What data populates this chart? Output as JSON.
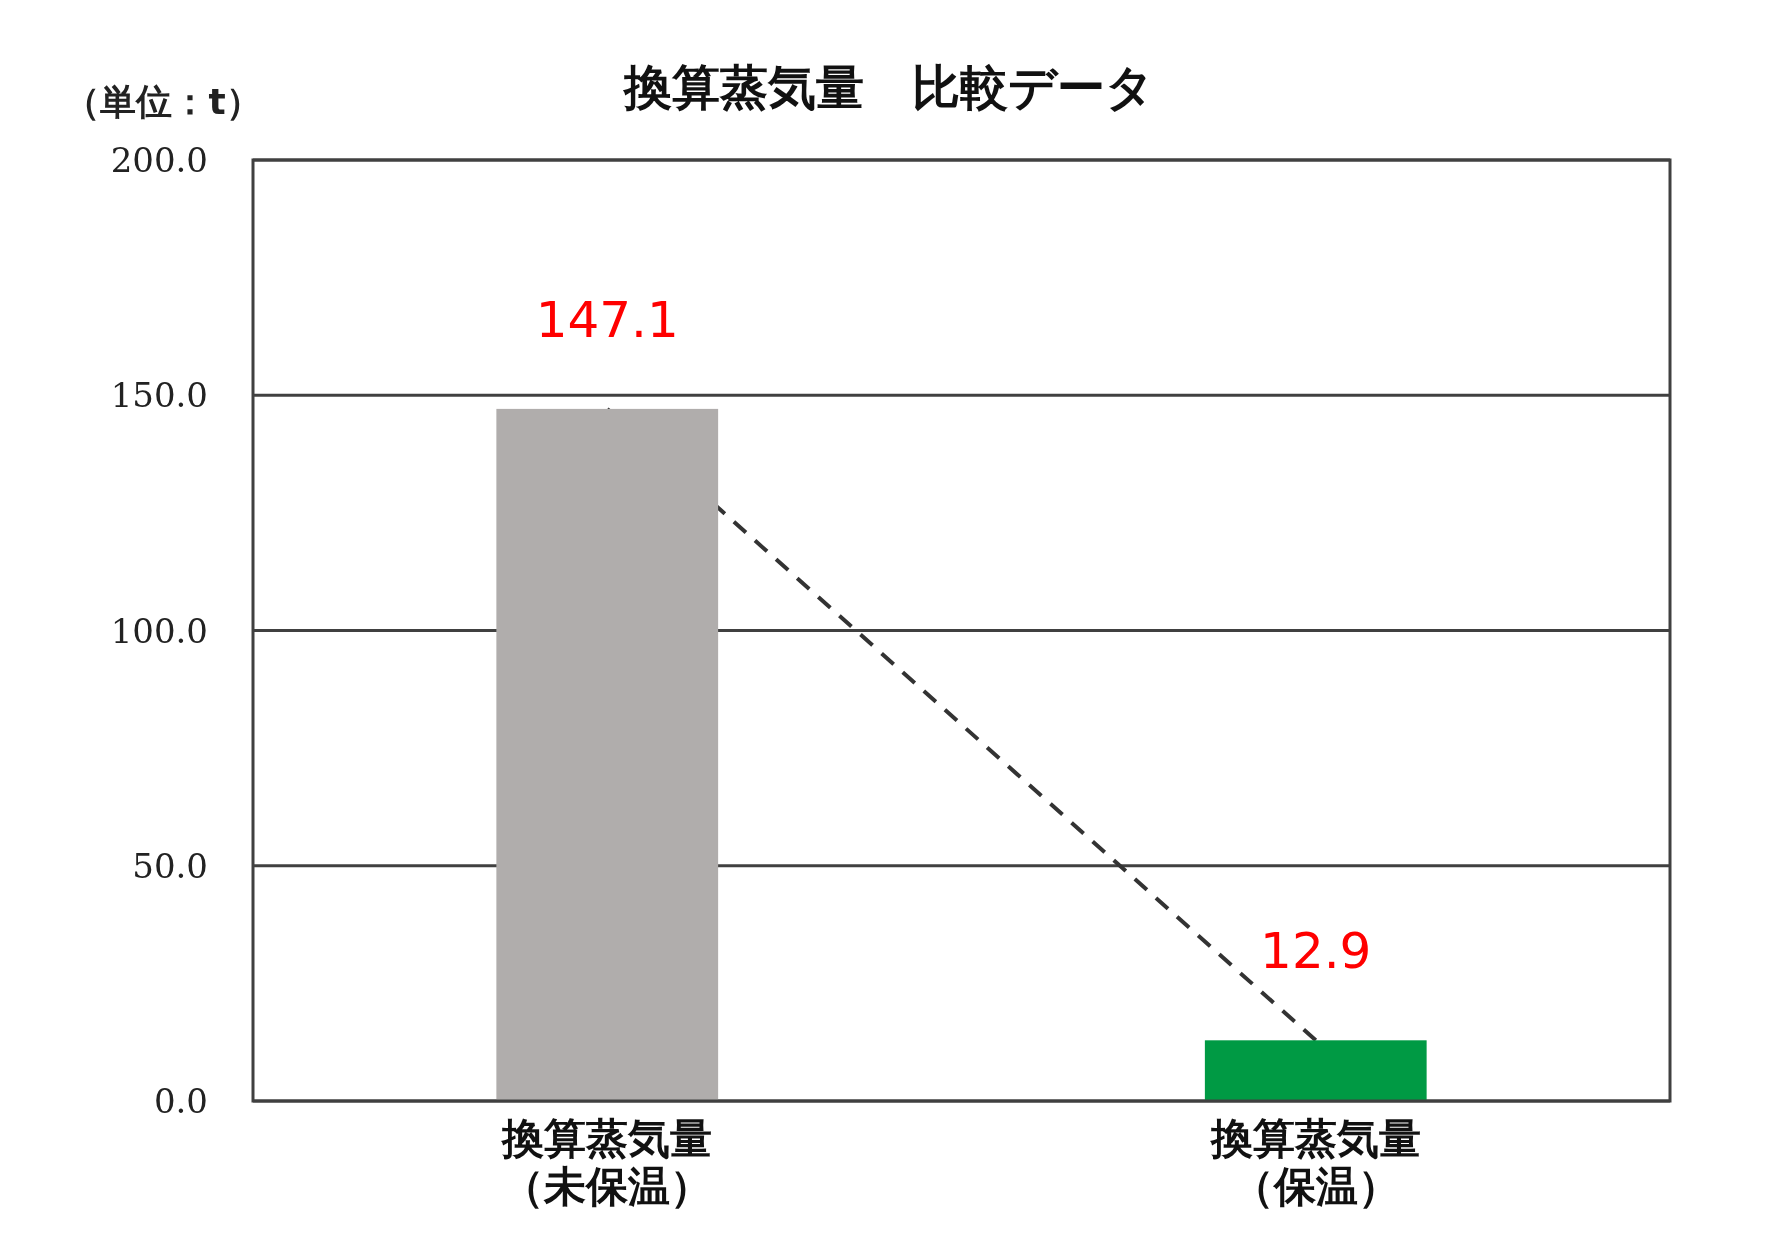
{
  "chart_data": {
    "type": "bar",
    "title": "換算蒸気量　比較データ",
    "ylabel": "（単位：t）",
    "categories": [
      "換算蒸気量（未保温）",
      "換算蒸気量（保温）"
    ],
    "series": [
      {
        "colors": [
          "#b0adac",
          "#009a44"
        ],
        "values": [
          147.1,
          12.9
        ],
        "value_labels": [
          "147.1",
          "12.9"
        ]
      },
      {
        "type": "line",
        "color": "#333333",
        "line_style": "dashed",
        "marker": "none",
        "values": [
          147.1,
          12.9
        ]
      }
    ],
    "ylim": [
      0,
      200
    ],
    "yticks": [
      {
        "value": 0,
        "label": "0.0"
      },
      {
        "value": 50,
        "label": "50.0"
      },
      {
        "value": 100,
        "label": "100.0"
      },
      {
        "value": 150,
        "label": "150.0"
      },
      {
        "value": 200,
        "label": "200.0"
      }
    ],
    "grid": "y"
  }
}
